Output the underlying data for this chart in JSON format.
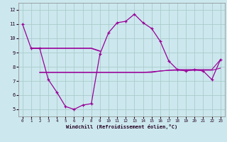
{
  "xlabel": "Windchill (Refroidissement éolien,°C)",
  "background_color": "#cce8ee",
  "grid_color": "#aacccc",
  "line_color": "#990099",
  "xlim": [
    -0.5,
    23.5
  ],
  "ylim": [
    4.5,
    12.5
  ],
  "yticks": [
    5,
    6,
    7,
    8,
    9,
    10,
    11,
    12
  ],
  "xticks": [
    0,
    1,
    2,
    3,
    4,
    5,
    6,
    7,
    8,
    9,
    10,
    11,
    12,
    13,
    14,
    15,
    16,
    17,
    18,
    19,
    20,
    21,
    22,
    23
  ],
  "series1_x": [
    0,
    1,
    2,
    3,
    4,
    5,
    6,
    7,
    8,
    9,
    10,
    11,
    12,
    13,
    14,
    15,
    16,
    17,
    18,
    19,
    20,
    21,
    22,
    23
  ],
  "series1_y": [
    11.0,
    9.3,
    9.3,
    7.1,
    6.2,
    5.2,
    5.0,
    5.3,
    5.4,
    8.9,
    10.4,
    11.1,
    11.2,
    11.7,
    11.1,
    10.7,
    9.8,
    8.4,
    7.8,
    7.7,
    7.8,
    7.7,
    7.1,
    8.5
  ],
  "series2_x": [
    1,
    2,
    3,
    4,
    5,
    6,
    7,
    8,
    9
  ],
  "series2_y": [
    9.3,
    9.3,
    9.3,
    9.3,
    9.3,
    9.3,
    9.3,
    9.3,
    9.1
  ],
  "series3_x": [
    2,
    3,
    4,
    5,
    6,
    7,
    8,
    9,
    10,
    11,
    12,
    13,
    14,
    15,
    16,
    17,
    18,
    19,
    20,
    21,
    22,
    23
  ],
  "series3_y": [
    7.6,
    7.6,
    7.6,
    7.6,
    7.6,
    7.6,
    7.6,
    7.6,
    7.6,
    7.6,
    7.6,
    7.6,
    7.6,
    7.6,
    7.7,
    7.75,
    7.8,
    7.8,
    7.8,
    7.8,
    7.8,
    8.5
  ],
  "series4_x": [
    2,
    3,
    4,
    5,
    6,
    7,
    8,
    9,
    10,
    11,
    12,
    13,
    14,
    15,
    16,
    17,
    18,
    19,
    20,
    21,
    22,
    23
  ],
  "series4_y": [
    7.6,
    7.6,
    7.6,
    7.6,
    7.6,
    7.6,
    7.6,
    7.6,
    7.6,
    7.6,
    7.6,
    7.6,
    7.6,
    7.65,
    7.7,
    7.75,
    7.75,
    7.75,
    7.75,
    7.75,
    7.75,
    7.9
  ]
}
